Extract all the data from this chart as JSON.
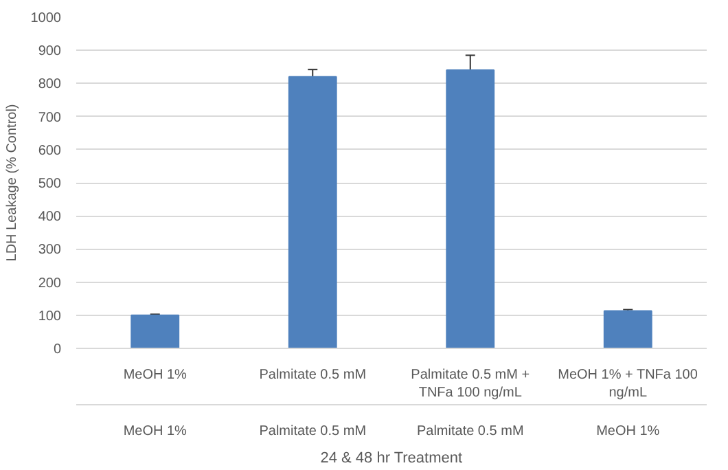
{
  "chart_data": {
    "type": "bar",
    "xlabel": "24 & 48 hr Treatment",
    "ylabel": "LDH Leakage (% Control)",
    "categories": [
      "MeOH 1%",
      "Palmitate 0.5 mM",
      "Palmitate 0.5 mM + TNFa 100 ng/mL",
      "MeOH 1% + TNFa 100 ng/mL"
    ],
    "annotations": [
      "MeOH 1%",
      "Palmitate 0.5 mM",
      "Palmitate 0.5 mM",
      "MeOH 1%"
    ],
    "values": [
      100,
      820,
      840,
      113
    ],
    "errors": [
      3,
      22,
      45,
      4
    ],
    "color": "#4f81bd",
    "ylim": [
      0,
      1000
    ],
    "yticks": [
      0,
      100,
      200,
      300,
      400,
      500,
      600,
      700,
      800,
      900,
      1000
    ],
    "grid": "y"
  }
}
